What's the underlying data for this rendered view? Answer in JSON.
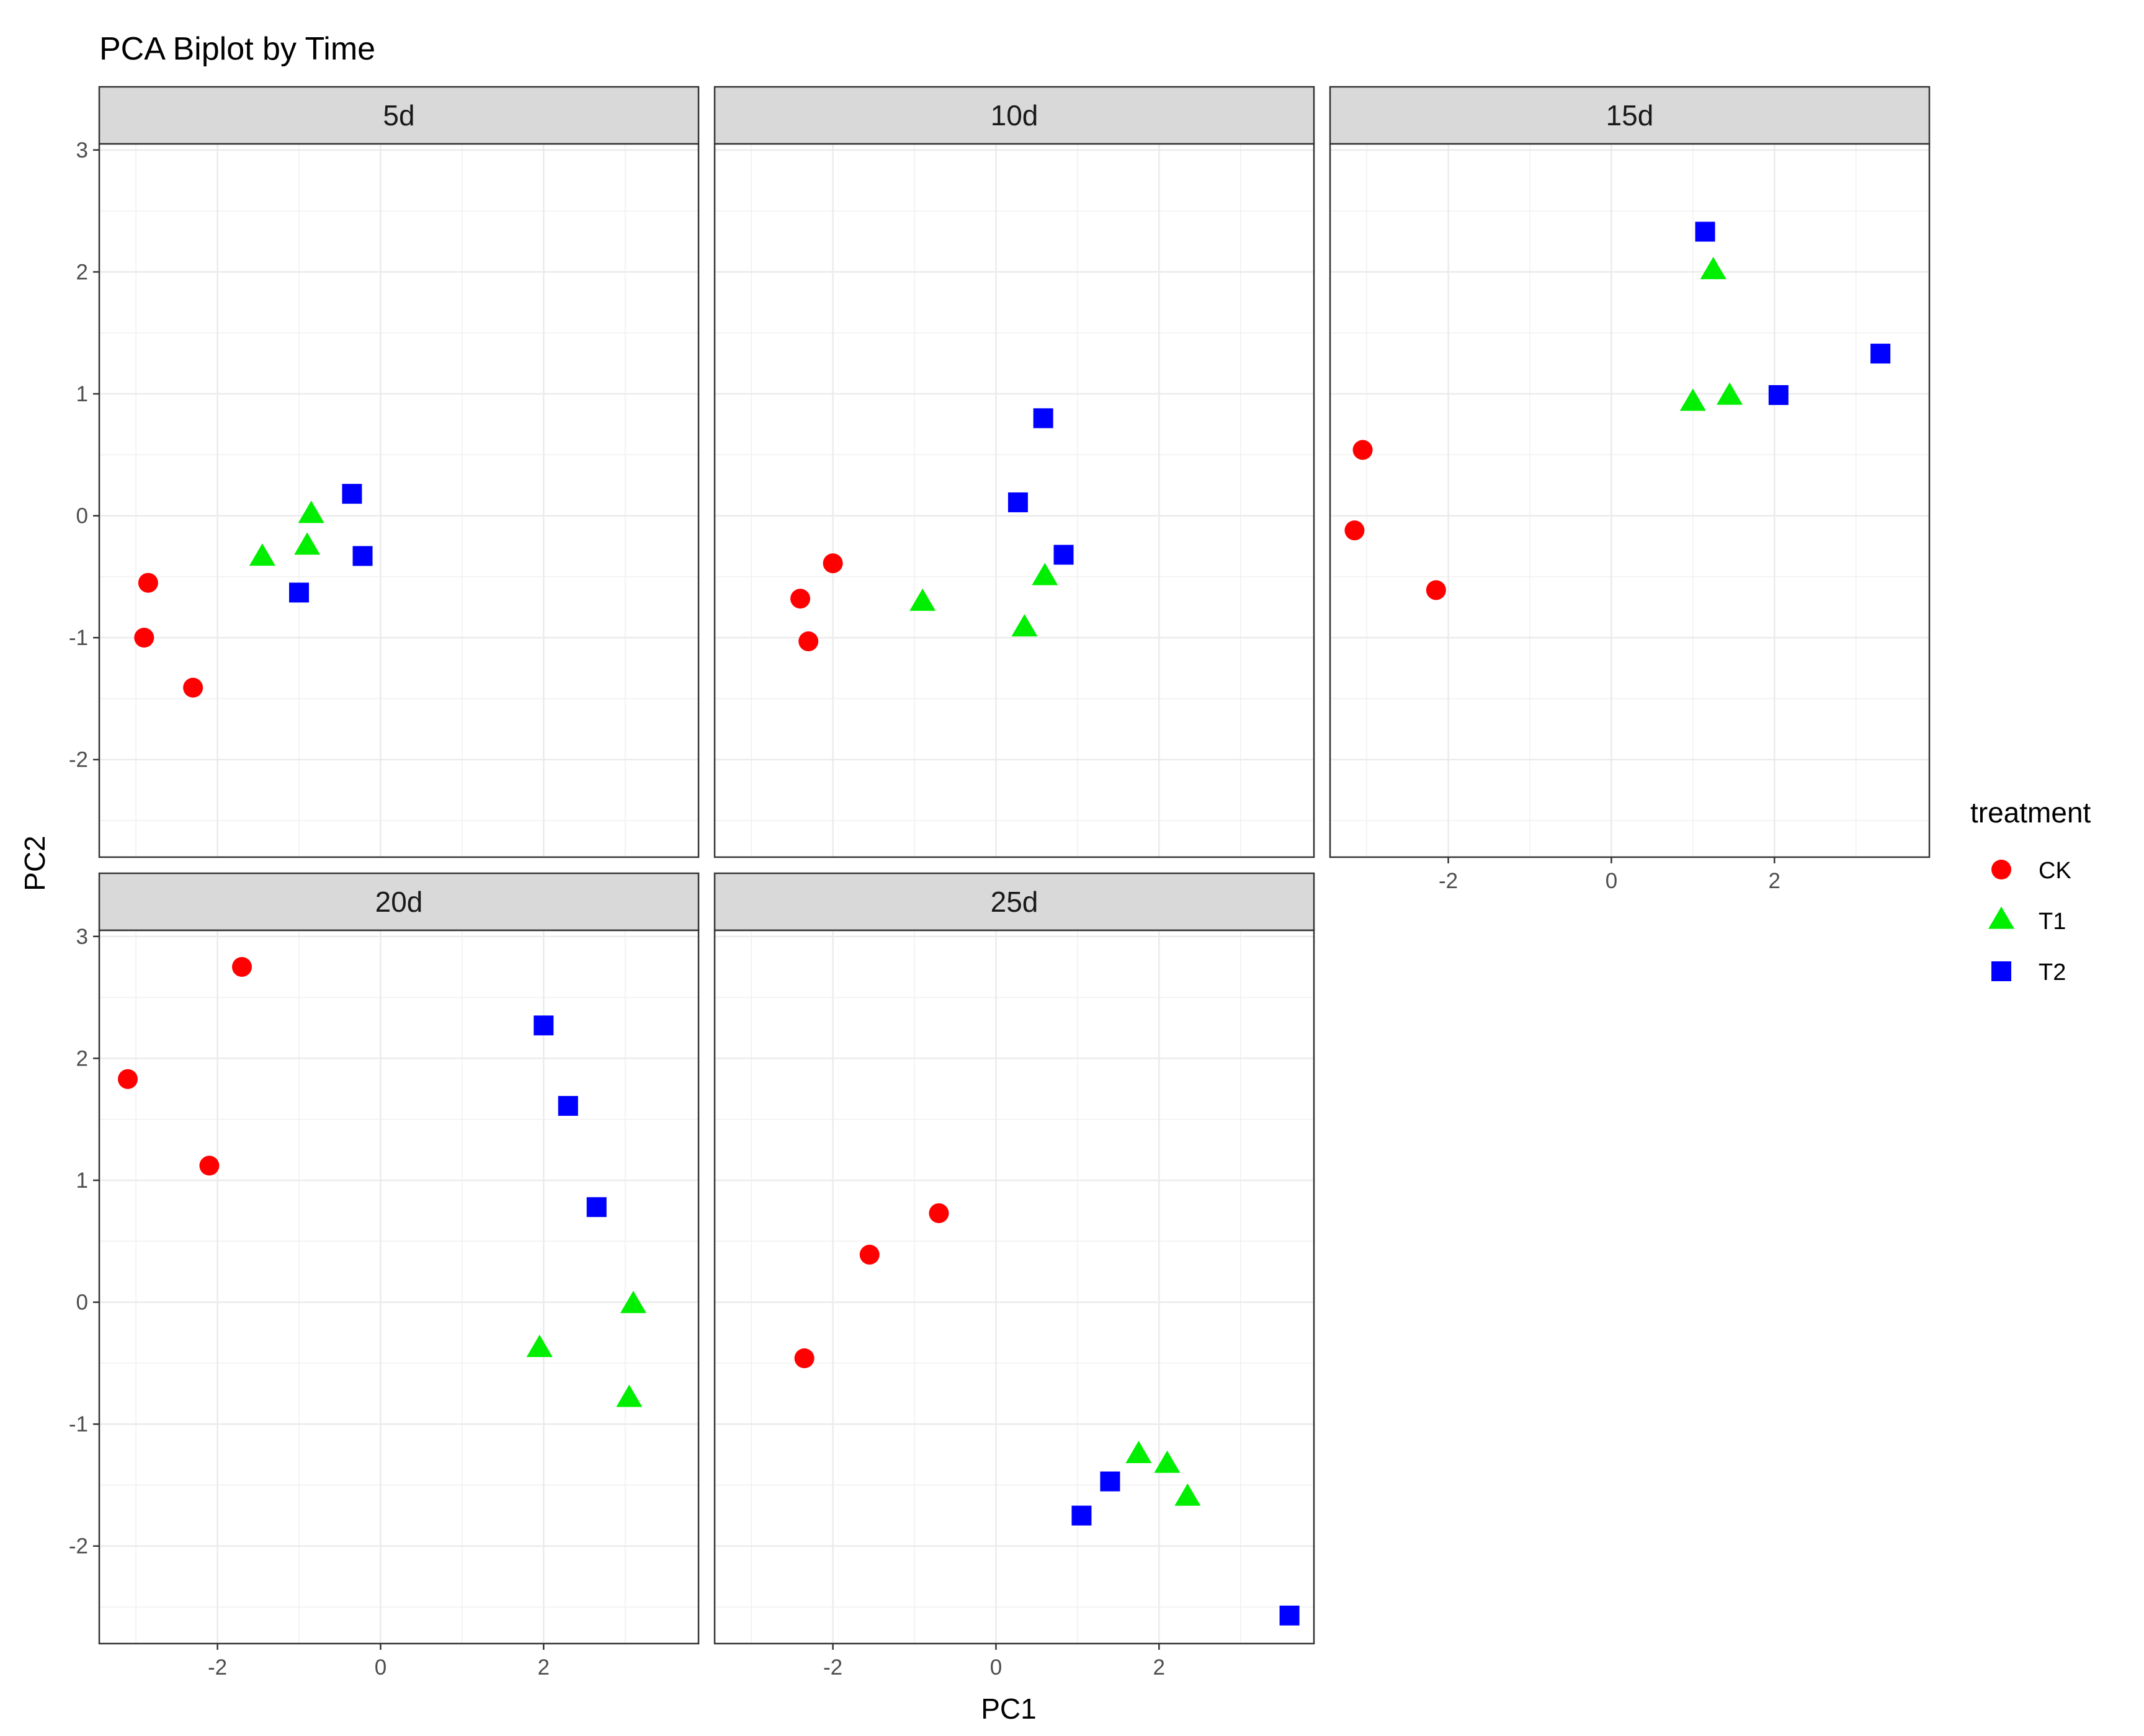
{
  "chart_data": {
    "type": "scatter",
    "title": "PCA Biplot by Time",
    "xlabel": "PC1",
    "ylabel": "PC2",
    "xlim": [
      -3.45,
      3.9
    ],
    "ylim": [
      -2.8,
      3.05
    ],
    "x_ticks": [
      -2,
      0,
      2
    ],
    "y_ticks": [
      -2,
      -1,
      0,
      1,
      2,
      3
    ],
    "grid": true,
    "legend": {
      "title": "treatment",
      "position": "right",
      "entries": [
        {
          "name": "CK",
          "color": "#ff0000",
          "shape": "circle"
        },
        {
          "name": "T1",
          "color": "#00ee00",
          "shape": "triangle"
        },
        {
          "name": "T2",
          "color": "#0000ff",
          "shape": "square"
        }
      ]
    },
    "facets": [
      {
        "label": "5d",
        "points": [
          {
            "treatment": "CK",
            "x": -2.85,
            "y": -0.55
          },
          {
            "treatment": "CK",
            "x": -2.9,
            "y": -1.0
          },
          {
            "treatment": "CK",
            "x": -2.3,
            "y": -1.41
          },
          {
            "treatment": "T1",
            "x": -1.45,
            "y": -0.34
          },
          {
            "treatment": "T1",
            "x": -0.9,
            "y": -0.25
          },
          {
            "treatment": "T1",
            "x": -0.85,
            "y": 0.01
          },
          {
            "treatment": "T2",
            "x": -0.35,
            "y": 0.18
          },
          {
            "treatment": "T2",
            "x": -1.0,
            "y": -0.63
          },
          {
            "treatment": "T2",
            "x": -0.22,
            "y": -0.33
          }
        ]
      },
      {
        "label": "10d",
        "points": [
          {
            "treatment": "CK",
            "x": -2.0,
            "y": -0.39
          },
          {
            "treatment": "CK",
            "x": -2.4,
            "y": -0.68
          },
          {
            "treatment": "CK",
            "x": -2.3,
            "y": -1.03
          },
          {
            "treatment": "T1",
            "x": -0.9,
            "y": -0.71
          },
          {
            "treatment": "T1",
            "x": 0.35,
            "y": -0.92
          },
          {
            "treatment": "T1",
            "x": 0.6,
            "y": -0.5
          },
          {
            "treatment": "T2",
            "x": 0.58,
            "y": 0.8
          },
          {
            "treatment": "T2",
            "x": 0.27,
            "y": 0.11
          },
          {
            "treatment": "T2",
            "x": 0.83,
            "y": -0.32
          }
        ]
      },
      {
        "label": "15d",
        "points": [
          {
            "treatment": "CK",
            "x": -3.05,
            "y": 0.54
          },
          {
            "treatment": "CK",
            "x": -3.15,
            "y": -0.12
          },
          {
            "treatment": "CK",
            "x": -2.15,
            "y": -0.61
          },
          {
            "treatment": "T1",
            "x": 1.25,
            "y": 2.01
          },
          {
            "treatment": "T1",
            "x": 1.0,
            "y": 0.93
          },
          {
            "treatment": "T1",
            "x": 1.45,
            "y": 0.98
          },
          {
            "treatment": "T2",
            "x": 1.15,
            "y": 2.33
          },
          {
            "treatment": "T2",
            "x": 2.05,
            "y": 0.99
          },
          {
            "treatment": "T2",
            "x": 3.3,
            "y": 1.33
          }
        ]
      },
      {
        "label": "20d",
        "points": [
          {
            "treatment": "CK",
            "x": -1.7,
            "y": 2.75
          },
          {
            "treatment": "CK",
            "x": -3.1,
            "y": 1.83
          },
          {
            "treatment": "CK",
            "x": -2.1,
            "y": 1.12
          },
          {
            "treatment": "T1",
            "x": 3.1,
            "y": -0.02
          },
          {
            "treatment": "T1",
            "x": 1.95,
            "y": -0.38
          },
          {
            "treatment": "T1",
            "x": 3.05,
            "y": -0.79
          },
          {
            "treatment": "T2",
            "x": 2.0,
            "y": 2.27
          },
          {
            "treatment": "T2",
            "x": 2.3,
            "y": 1.61
          },
          {
            "treatment": "T2",
            "x": 2.65,
            "y": 0.78
          }
        ]
      },
      {
        "label": "25d",
        "points": [
          {
            "treatment": "CK",
            "x": -0.7,
            "y": 0.73
          },
          {
            "treatment": "CK",
            "x": -1.55,
            "y": 0.39
          },
          {
            "treatment": "CK",
            "x": -2.35,
            "y": -0.46
          },
          {
            "treatment": "T1",
            "x": 1.75,
            "y": -1.25
          },
          {
            "treatment": "T1",
            "x": 2.1,
            "y": -1.33
          },
          {
            "treatment": "T1",
            "x": 2.35,
            "y": -1.6
          },
          {
            "treatment": "T2",
            "x": 1.4,
            "y": -1.47
          },
          {
            "treatment": "T2",
            "x": 1.05,
            "y": -1.75
          },
          {
            "treatment": "T2",
            "x": 3.6,
            "y": -2.57
          }
        ]
      }
    ]
  }
}
